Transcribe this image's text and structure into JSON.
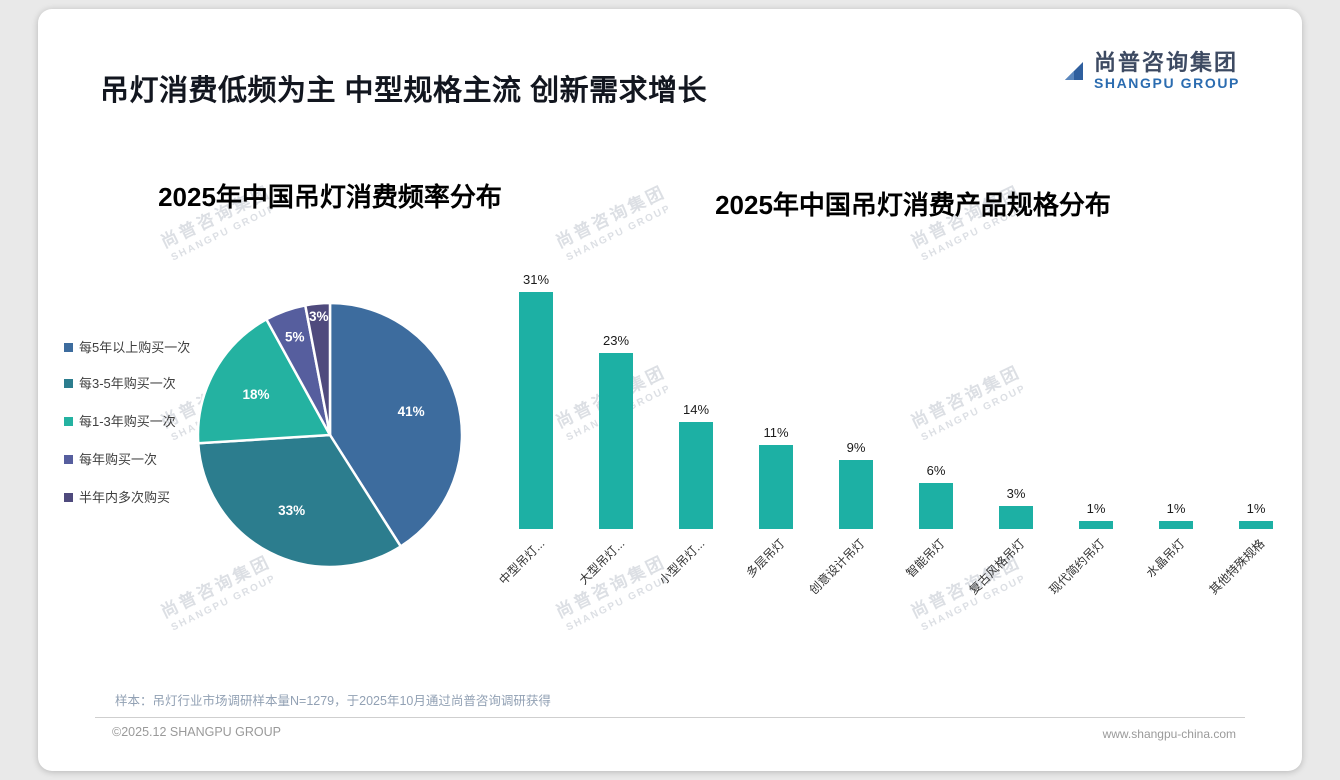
{
  "page": {
    "title": "吊灯消费低频为主 中型规格主流 创新需求增长",
    "footnote": "样本：吊灯行业市场调研样本量N=1279，于2025年10月通过尚普咨询调研获得",
    "footer_left": "©2025.12 SHANGPU GROUP",
    "footer_right": "www.shangpu-china.com"
  },
  "logo": {
    "cn": "尚普咨询集团",
    "en": "SHANGPU GROUP",
    "color": "#2b6cb0"
  },
  "watermark": {
    "cn": "尚普咨询集团",
    "en": "SHANGPU GROUP"
  },
  "chart_data": [
    {
      "type": "pie",
      "title": "2025年中国吊灯消费频率分布",
      "categories": [
        "每5年以上购买一次",
        "每3-5年购买一次",
        "每1-3年购买一次",
        "每年购买一次",
        "半年内多次购买"
      ],
      "values": [
        41,
        33,
        18,
        5,
        3
      ],
      "labels": [
        "41%",
        "33%",
        "18%",
        "5%",
        "3%"
      ],
      "colors": [
        "#3d6c9e",
        "#2c7d8e",
        "#24b2a1",
        "#565e9e",
        "#4f4a7d"
      ],
      "legend_position": "left",
      "start_angle_deg": 0,
      "direction": "clockwise"
    },
    {
      "type": "bar",
      "title": "2025年中国吊灯消费产品规格分布",
      "categories": [
        "中型吊灯...",
        "大型吊灯...",
        "小型吊灯...",
        "多层吊灯",
        "创意设计吊灯",
        "智能吊灯",
        "复古风格吊灯",
        "现代简约吊灯",
        "水晶吊灯",
        "其他特殊规格"
      ],
      "values": [
        31,
        23,
        14,
        11,
        9,
        6,
        3,
        1,
        1,
        1
      ],
      "labels": [
        "31%",
        "23%",
        "14%",
        "11%",
        "9%",
        "6%",
        "3%",
        "1%",
        "1%",
        "1%"
      ],
      "bar_color": "#1db0a4",
      "xlabel": "",
      "ylabel": "",
      "ylim": [
        0,
        31
      ],
      "grid": false,
      "legend": "none"
    }
  ]
}
